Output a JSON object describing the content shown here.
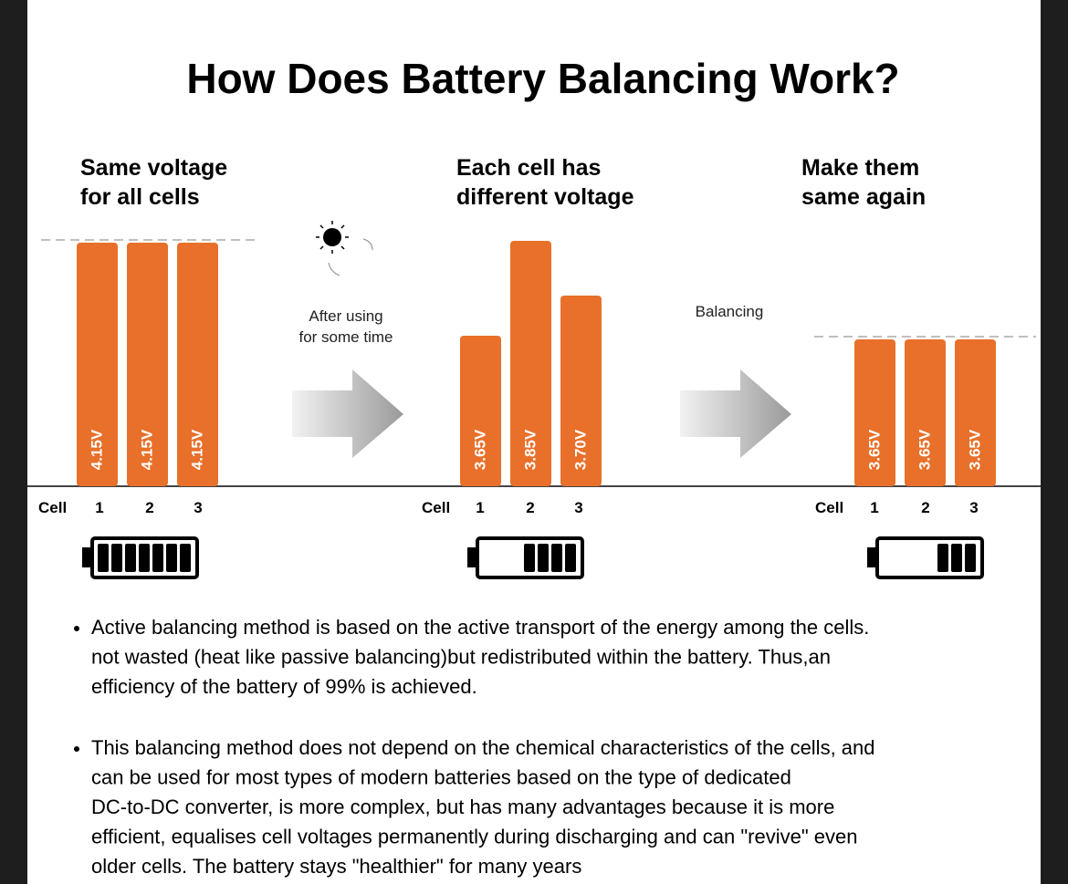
{
  "title": "How Does Battery Balancing Work?",
  "panels": [
    {
      "heading": [
        "Same voltage",
        "for all cells"
      ],
      "cell_label": "Cell",
      "cells": [
        "1",
        "2",
        "3"
      ],
      "bars": [
        "4.15V",
        "4.15V",
        "4.15V"
      ]
    },
    {
      "heading": [
        "Each cell has",
        "different voltage"
      ],
      "cell_label": "Cell",
      "cells": [
        "1",
        "2",
        "3"
      ],
      "bars": [
        "3.65V",
        "3.85V",
        "3.70V"
      ]
    },
    {
      "heading": [
        "Make them",
        "same again"
      ],
      "cell_label": "Cell",
      "cells": [
        "1",
        "2",
        "3"
      ],
      "bars": [
        "3.65V",
        "3.65V",
        "3.65V"
      ]
    }
  ],
  "transitions": [
    {
      "caption": [
        "After using",
        "for some time"
      ]
    },
    {
      "caption": [
        "Balancing"
      ]
    }
  ],
  "bullets": [
    [
      "Active balancing method is based on the active transport of the energy among the cells.",
      "not wasted (heat like passive balancing)but redistributed within the battery. Thus,an",
      "efficiency of the battery of 99% is achieved."
    ],
    [
      "This balancing method does not depend on the chemical characteristics of the cells, and",
      "can be used for most types of modern batteries  based on the type of dedicated",
      "DC-to-DC converter, is more complex, but has many advantages because it is more",
      "efficient, equalises cell voltages permanently during discharging and can \"revive\" even",
      "older cells. The battery stays \"healthier\" for many years"
    ]
  ]
}
